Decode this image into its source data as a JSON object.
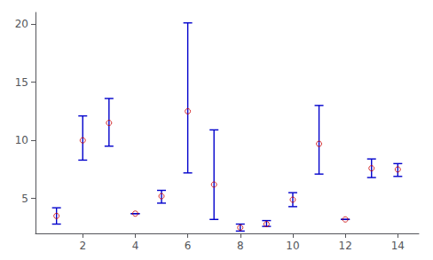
{
  "chart_data": {
    "type": "errorbar",
    "x": [
      1,
      2,
      3,
      4,
      5,
      6,
      7,
      8,
      9,
      10,
      11,
      12,
      13,
      14
    ],
    "series": [
      {
        "type": "errorbar",
        "color": "#0000cc",
        "lower": [
          2.8,
          8.3,
          9.5,
          3.7,
          4.6,
          7.2,
          3.2,
          2.2,
          2.6,
          4.3,
          7.1,
          3.2,
          6.8,
          6.9
        ],
        "upper": [
          4.2,
          12.1,
          13.6,
          3.7,
          5.7,
          20.1,
          10.9,
          2.8,
          3.1,
          5.5,
          13.0,
          3.2,
          8.4,
          8.0
        ]
      },
      {
        "type": "scatter",
        "color": "#cc0000",
        "marker": "open_circle",
        "values": [
          3.5,
          10.0,
          11.5,
          3.7,
          5.2,
          12.5,
          6.2,
          2.5,
          2.8,
          4.9,
          9.7,
          3.2,
          7.6,
          7.5
        ]
      }
    ],
    "xlim": [
      0.2,
      14.8
    ],
    "xticks": [
      2,
      4,
      6,
      8,
      10,
      12,
      14
    ],
    "ylim": [
      2.0,
      21.0
    ],
    "yticks": [
      5,
      10,
      15,
      20
    ],
    "grid": false
  }
}
